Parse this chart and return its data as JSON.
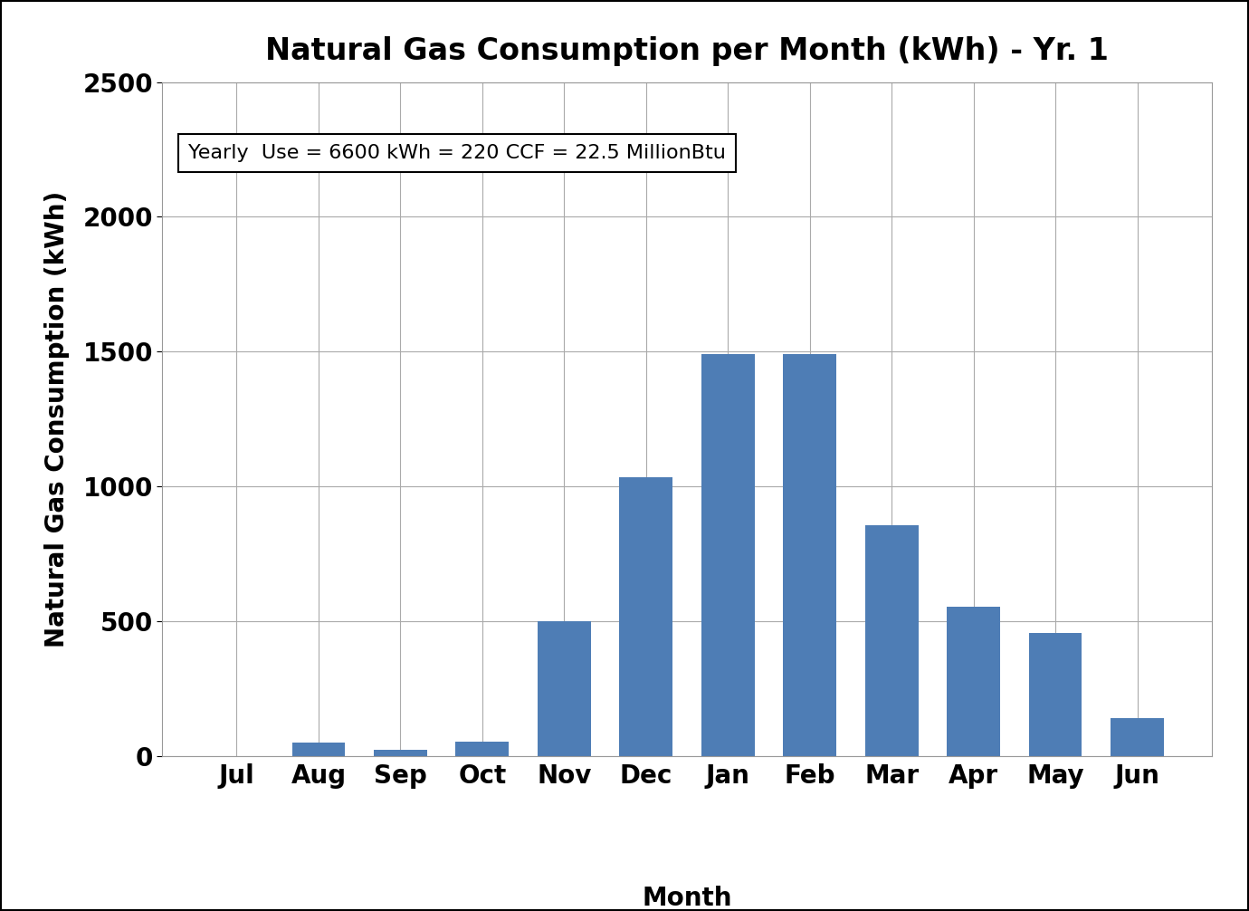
{
  "title": "Natural Gas Consumption per Month (kWh) - Yr. 1",
  "ylabel": "Natural Gas Consumption (kWh)",
  "xlabel_main": "Month",
  "annotation": "Yearly  Use = 6600 kWh = 220 CCF = 22.5 MillionBtu",
  "categories": [
    "Jul",
    "Aug",
    "Sep",
    "Oct",
    "Nov",
    "Dec",
    "Jan",
    "Feb",
    "Mar",
    "Apr",
    "May",
    "Jun"
  ],
  "values": [
    0,
    50,
    25,
    55,
    500,
    1035,
    1490,
    1490,
    855,
    555,
    455,
    140
  ],
  "bar_color": "#4e7db5",
  "ylim": [
    0,
    2500
  ],
  "yticks": [
    0,
    500,
    1000,
    1500,
    2000,
    2500
  ],
  "background_color": "#ffffff",
  "title_fontsize": 24,
  "axis_label_fontsize": 20,
  "tick_fontsize": 20,
  "annotation_fontsize": 16,
  "figure_border_color": "#333333",
  "grid_color": "#aaaaaa",
  "spine_color": "#999999"
}
